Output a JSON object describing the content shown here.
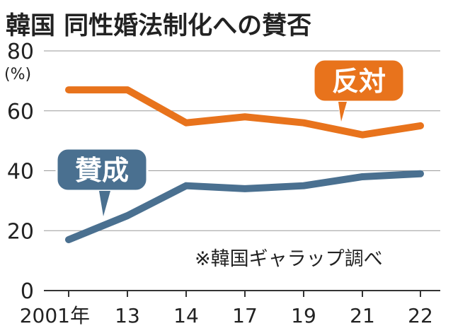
{
  "chart_data": {
    "type": "line",
    "title": "韓国  同性婚法制化への賛否",
    "unit_label": "(%)",
    "categories": [
      "2001年",
      "13",
      "14",
      "17",
      "19",
      "21",
      "22"
    ],
    "ylim": [
      0,
      80
    ],
    "yticks": [
      0,
      20,
      40,
      60,
      80
    ],
    "grid": true,
    "series": [
      {
        "name": "反対",
        "color": "#e8731c",
        "values": [
          67,
          67,
          56,
          58,
          56,
          52,
          55
        ]
      },
      {
        "name": "賛成",
        "color": "#4a7090",
        "values": [
          17,
          25,
          35,
          34,
          35,
          38,
          39
        ]
      }
    ],
    "source_note": "※韓国ギャラップ調べ"
  }
}
